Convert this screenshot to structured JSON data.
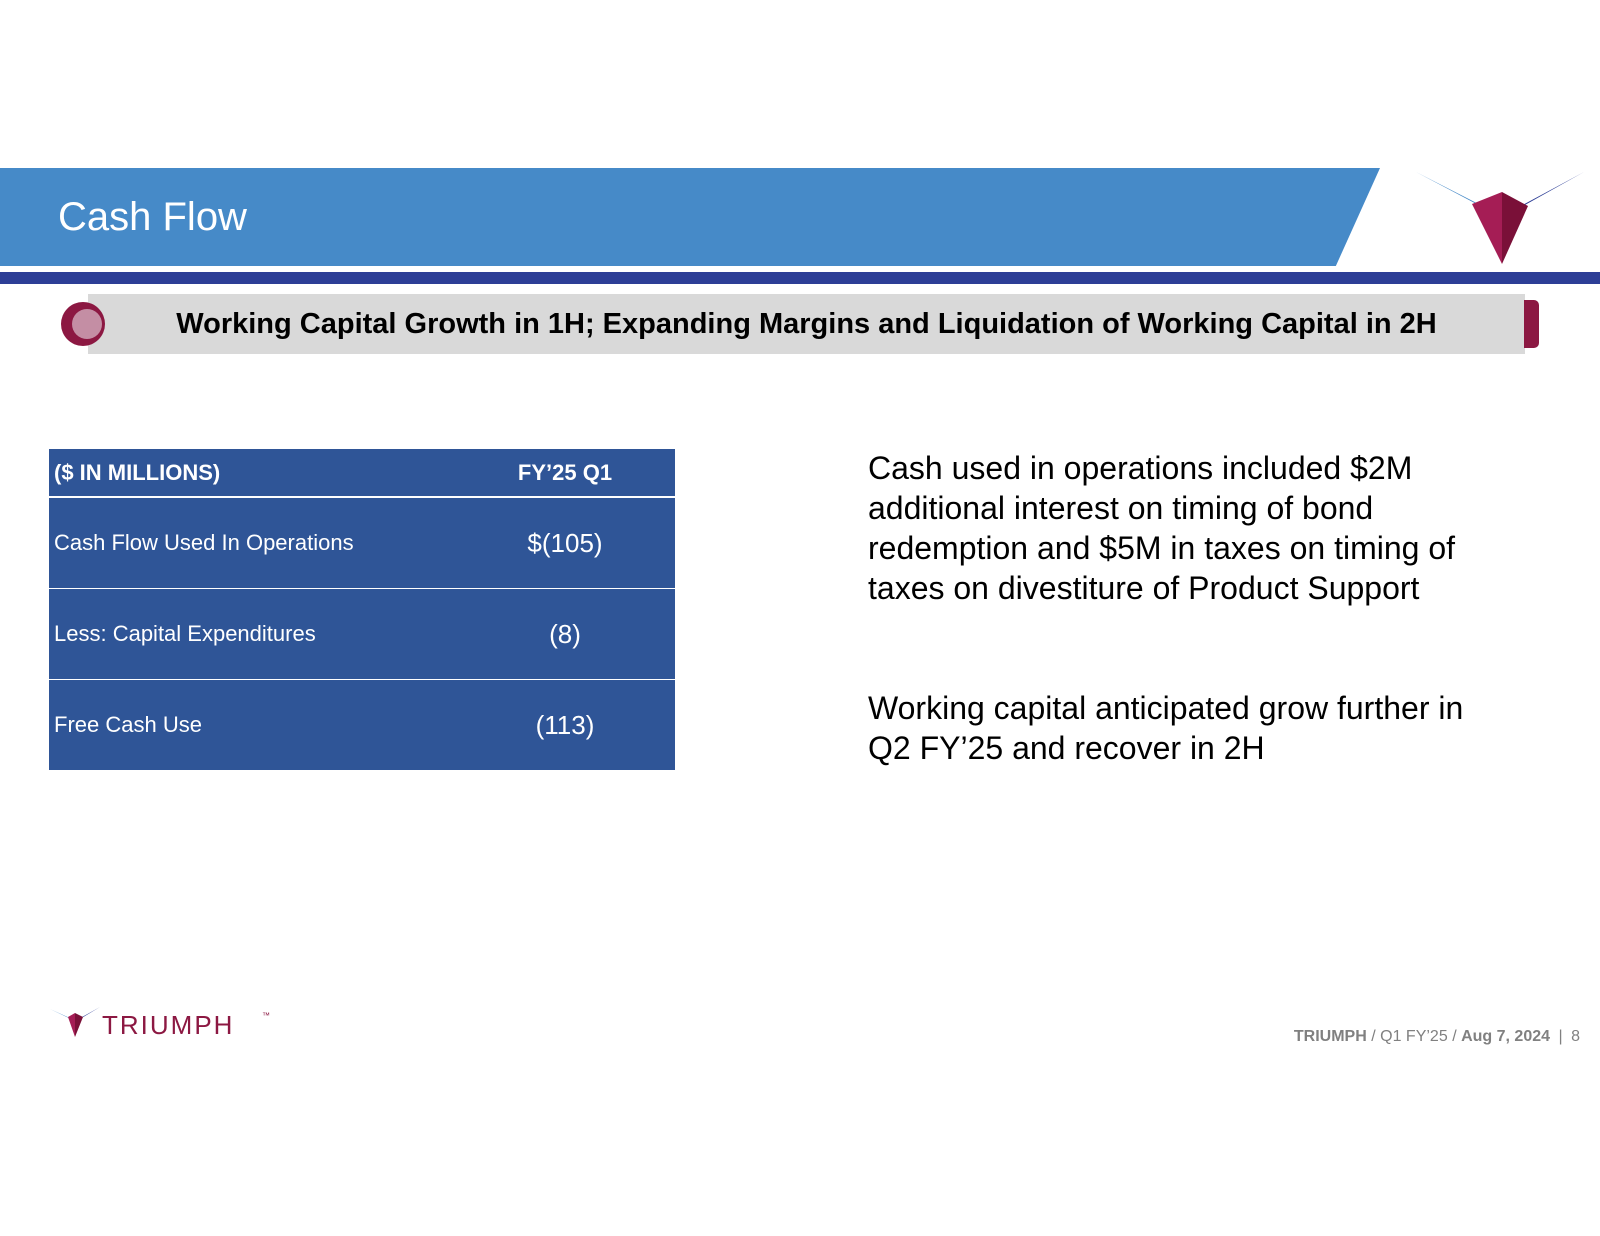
{
  "header": {
    "title": "Cash Flow"
  },
  "subtitle": "Working Capital Growth in 1H; Expanding Margins and Liquidation of Working Capital in 2H",
  "table": {
    "headers": [
      "($ IN MILLIONS)",
      "FY’25 Q1"
    ],
    "rows": [
      {
        "label": "Cash Flow Used In Operations",
        "value": "$(105)"
      },
      {
        "label": "Less: Capital Expenditures",
        "value": "(8)"
      },
      {
        "label": "Free Cash Use",
        "value": "(113)"
      }
    ]
  },
  "commentary": [
    "Cash used in operations included $2M additional interest on timing of bond redemption and $5M in taxes on timing of taxes on divestiture of Product Support",
    "Working capital anticipated grow further in Q2 FY’25 and recover in 2H"
  ],
  "footer": {
    "logo_text": "TRIUMPH",
    "logo_tm": "™",
    "company": "TRIUMPH",
    "slash1": "/",
    "quarter": "Q1 FY’25",
    "slash2": "/",
    "date": "Aug 7, 2024",
    "divider": "|",
    "page_number": "8"
  },
  "colors": {
    "header_blue": "#468ac8",
    "rule_navy": "#2d3e96",
    "table_blue": "#2f5597",
    "brand_maroon": "#8c1842"
  }
}
